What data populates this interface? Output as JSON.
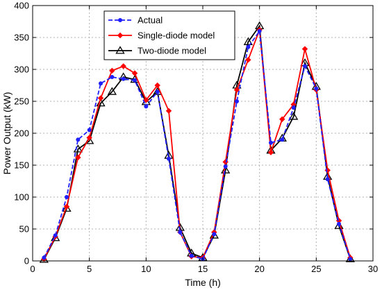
{
  "chart_data": {
    "type": "line",
    "xlabel": "Time (h)",
    "ylabel": "Power Output (kW)",
    "xlim": [
      0,
      30
    ],
    "ylim": [
      0,
      400
    ],
    "xticks": [
      0,
      5,
      10,
      15,
      20,
      25,
      30
    ],
    "yticks": [
      0,
      50,
      100,
      150,
      200,
      250,
      300,
      350,
      400
    ],
    "grid": true,
    "legend_position": "top-left",
    "x": [
      1,
      2,
      3,
      4,
      5,
      6,
      7,
      8,
      9,
      10,
      11,
      12,
      13,
      14,
      15,
      16,
      17,
      18,
      19,
      20,
      21,
      22,
      23,
      24,
      25,
      26,
      27,
      28
    ],
    "series": [
      {
        "name": "Actual",
        "color": "#1f1fff",
        "line_style": "dashed",
        "marker": "dot",
        "values": [
          5,
          40,
          100,
          190,
          205,
          278,
          288,
          285,
          283,
          242,
          265,
          160,
          45,
          8,
          3,
          42,
          148,
          250,
          335,
          360,
          185,
          190,
          240,
          305,
          270,
          128,
          58,
          3
        ]
      },
      {
        "name": "Single-diode model",
        "color": "#ff0000",
        "line_style": "solid",
        "marker": "diamond",
        "values": [
          3,
          38,
          85,
          162,
          193,
          255,
          298,
          305,
          294,
          252,
          275,
          235,
          45,
          7,
          5,
          45,
          155,
          268,
          315,
          362,
          170,
          222,
          245,
          332,
          268,
          142,
          63,
          5
        ]
      },
      {
        "name": "Two-diode model",
        "color": "#000000",
        "line_style": "solid",
        "marker": "triangle",
        "values": [
          2,
          36,
          82,
          175,
          188,
          247,
          265,
          288,
          284,
          249,
          265,
          165,
          52,
          12,
          5,
          40,
          142,
          275,
          343,
          368,
          173,
          192,
          226,
          310,
          273,
          132,
          55,
          3
        ]
      }
    ]
  }
}
